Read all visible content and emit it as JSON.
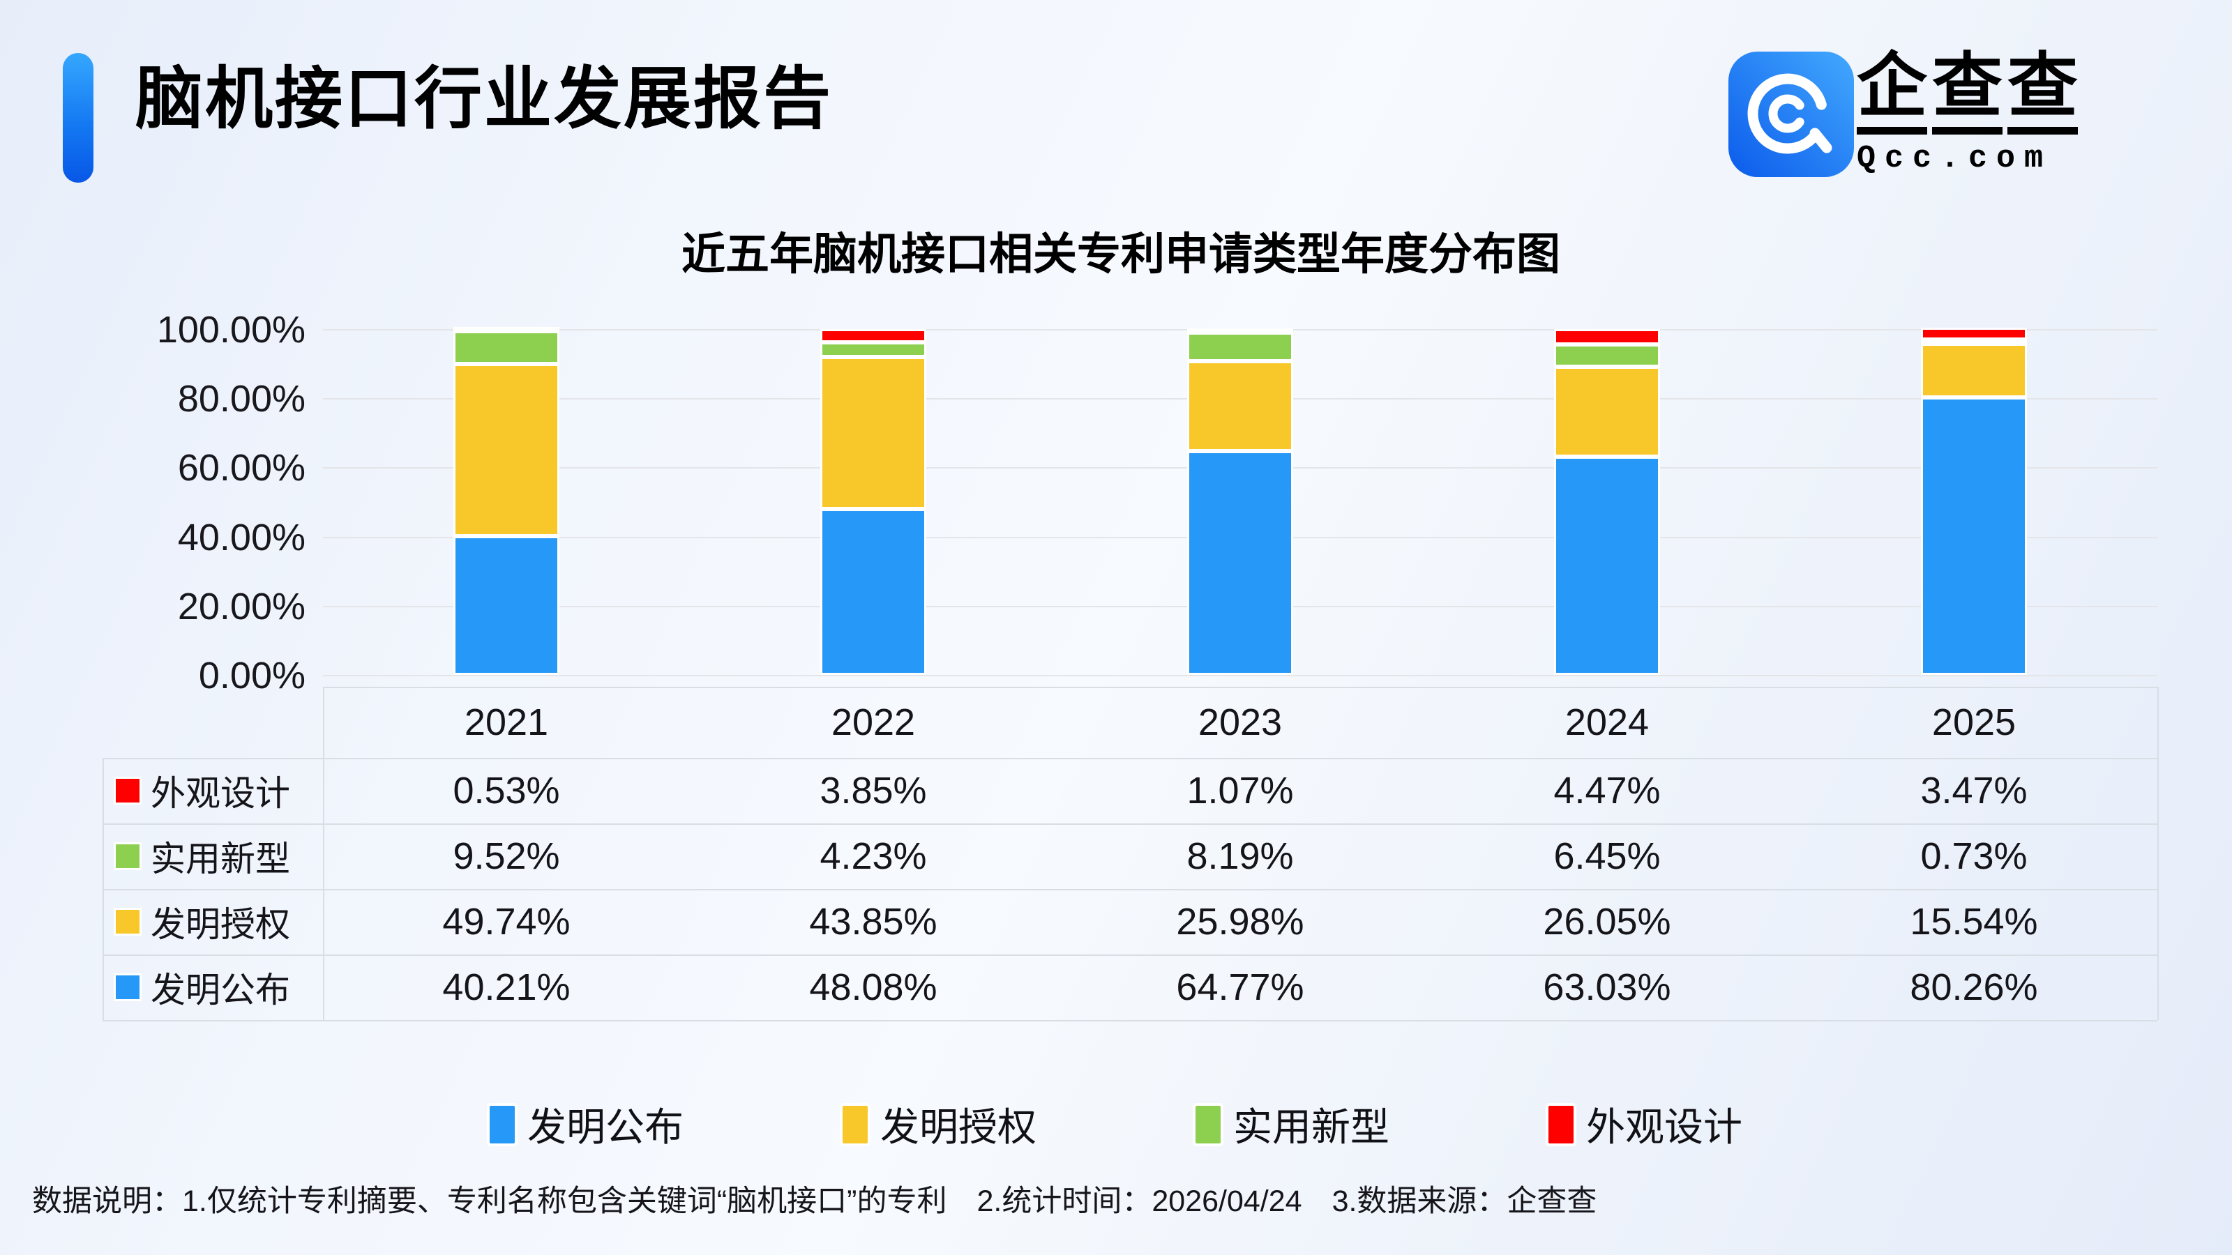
{
  "page": {
    "title": "脑机接口行业发展报告",
    "logo": {
      "chars": [
        "企",
        "查",
        "查"
      ],
      "domain": "Qcc.com"
    },
    "footer": "数据说明：1.仅统计专利摘要、专利名称包含关键词“脑机接口”的专利　2.统计时间：2026/04/24　3.数据来源：企查查"
  },
  "colors": {
    "blue": "#2598f8",
    "yellow": "#f8c82b",
    "green": "#8dd050",
    "red": "#ff0000",
    "grid": "#e3e5e9",
    "table_border": "#d9dde4",
    "accent_top": "#35a7fe",
    "accent_bottom": "#0757e6"
  },
  "chart_data": {
    "type": "bar",
    "stacked": true,
    "title": "近五年脑机接口相关专利申请类型年度分布图",
    "categories": [
      "2021",
      "2022",
      "2023",
      "2024",
      "2025"
    ],
    "series": [
      {
        "name": "发明公布",
        "color_key": "blue",
        "values": [
          40.21,
          48.08,
          64.77,
          63.03,
          80.26
        ]
      },
      {
        "name": "发明授权",
        "color_key": "yellow",
        "values": [
          49.74,
          43.85,
          25.98,
          26.05,
          15.54
        ]
      },
      {
        "name": "实用新型",
        "color_key": "green",
        "values": [
          9.52,
          4.23,
          8.19,
          6.45,
          0.73
        ]
      },
      {
        "name": "外观设计",
        "color_key": "red",
        "values": [
          0.53,
          3.85,
          1.07,
          4.47,
          3.47
        ]
      }
    ],
    "unit": "%",
    "ylim": [
      0,
      100
    ],
    "y_ticks": [
      "100.00%",
      "80.00%",
      "60.00%",
      "40.00%",
      "20.00%",
      "0.00%"
    ],
    "grid": true,
    "legend_position": "bottom",
    "legend": [
      "发明公布",
      "发明授权",
      "实用新型",
      "外观设计"
    ],
    "table": {
      "rows": [
        {
          "label": "外观设计",
          "color_key": "red",
          "cells": [
            "0.53%",
            "3.85%",
            "1.07%",
            "4.47%",
            "3.47%"
          ]
        },
        {
          "label": "实用新型",
          "color_key": "green",
          "cells": [
            "9.52%",
            "4.23%",
            "8.19%",
            "6.45%",
            "0.73%"
          ]
        },
        {
          "label": "发明授权",
          "color_key": "yellow",
          "cells": [
            "49.74%",
            "43.85%",
            "25.98%",
            "26.05%",
            "15.54%"
          ]
        },
        {
          "label": "发明公布",
          "color_key": "blue",
          "cells": [
            "40.21%",
            "48.08%",
            "64.77%",
            "63.03%",
            "80.26%"
          ]
        }
      ]
    }
  }
}
